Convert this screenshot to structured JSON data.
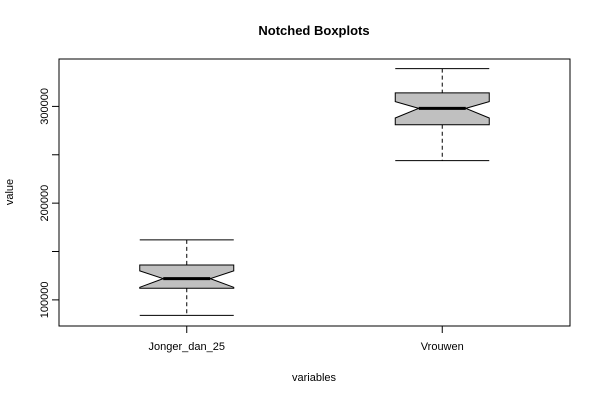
{
  "chart_data": {
    "type": "boxplot",
    "title": "Notched Boxplots",
    "xlabel": "variables",
    "ylabel": "value",
    "ylim": [
      73000,
      349000
    ],
    "yticks": [
      100000,
      200000,
      300000
    ],
    "ytick_labels": [
      "100000",
      "200000",
      "300000"
    ],
    "box_fill": "#c0c0c0",
    "categories": [
      "Jonger_dan_25",
      "Vrouwen"
    ],
    "boxes": [
      {
        "name": "Jonger_dan_25",
        "min": 84000,
        "q1": 112000,
        "median": 122000,
        "q3": 136000,
        "max": 162000,
        "notch_low": 113000,
        "notch_high": 130000
      },
      {
        "name": "Vrouwen",
        "min": 244000,
        "q1": 281000,
        "median": 298000,
        "q3": 314000,
        "max": 339000,
        "notch_low": 288000,
        "notch_high": 305000
      }
    ]
  }
}
